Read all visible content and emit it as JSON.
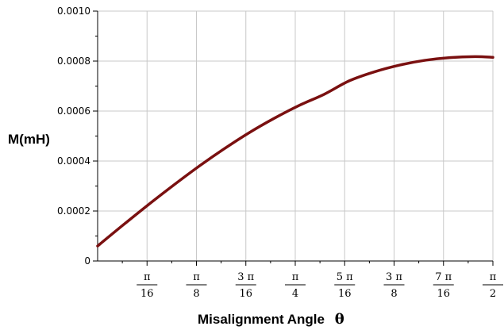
{
  "chart_data": {
    "type": "line",
    "title": "",
    "ylabel": "M(mH)",
    "xlabel": "Misalignment Angle",
    "xlabel_symbol": "θ",
    "xlim": [
      0,
      1.5708
    ],
    "ylim": [
      0,
      0.001
    ],
    "grid": true,
    "x_ticks": [
      {
        "value": 0.19635,
        "num": "π",
        "den": "16"
      },
      {
        "value": 0.3927,
        "num": "π",
        "den": "8"
      },
      {
        "value": 0.58905,
        "num": "3 π",
        "den": "16"
      },
      {
        "value": 0.7854,
        "num": "π",
        "den": "4"
      },
      {
        "value": 0.98175,
        "num": "5 π",
        "den": "16"
      },
      {
        "value": 1.1781,
        "num": "3 π",
        "den": "8"
      },
      {
        "value": 1.37445,
        "num": "7 π",
        "den": "16"
      },
      {
        "value": 1.5708,
        "num": "π",
        "den": "2"
      }
    ],
    "y_ticks": [
      {
        "value": 0,
        "label": "0"
      },
      {
        "value": 0.0002,
        "label": "0.0002"
      },
      {
        "value": 0.0004,
        "label": "0.0004"
      },
      {
        "value": 0.0006,
        "label": "0.0006"
      },
      {
        "value": 0.0008,
        "label": "0.0008"
      },
      {
        "value": 0.001,
        "label": "0.0010"
      }
    ],
    "series": [
      {
        "color": "#7a1010",
        "x": [
          0,
          0.1,
          0.2,
          0.3,
          0.4,
          0.5,
          0.6,
          0.7,
          0.8,
          0.9,
          1.0,
          1.1,
          1.2,
          1.3,
          1.4,
          1.5,
          1.5708
        ],
        "y": [
          6e-05,
          0.000143,
          0.000224,
          0.000302,
          0.000377,
          0.000447,
          0.000512,
          0.00057,
          0.000622,
          0.000667,
          0.000721,
          0.000757,
          0.000784,
          0.000803,
          0.000814,
          0.000818,
          0.000815
        ]
      }
    ]
  }
}
